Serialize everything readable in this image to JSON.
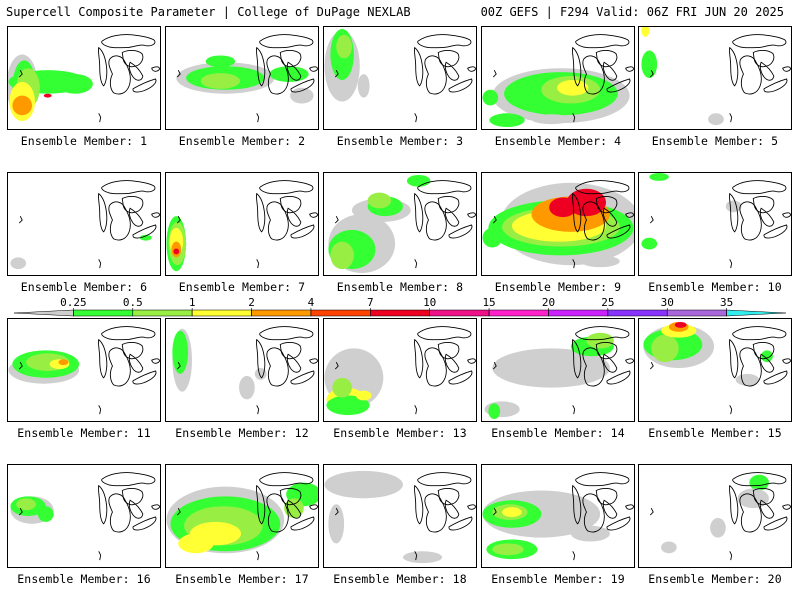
{
  "header": {
    "left_title": "Supercell Composite Parameter | College of DuPage NEXLAB",
    "right_title": "00Z GEFS | F294 Valid: 06Z FRI JUN 20 2025"
  },
  "colorbar": {
    "levels": [
      "0.25",
      "0.5",
      "1",
      "2",
      "4",
      "7",
      "10",
      "15",
      "20",
      "25",
      "30",
      "35"
    ],
    "colors": [
      "#cfcfcf",
      "#33ff33",
      "#99ee44",
      "#ffff33",
      "#ff9900",
      "#ff4400",
      "#ee0022",
      "#ee1188",
      "#ff22cc",
      "#cc22ff",
      "#8833ff",
      "#aa66dd",
      "#33eeee"
    ]
  },
  "colors": {
    "gray": "#cfcfcf",
    "green": "#33ff33",
    "lime": "#99ee44",
    "yellow": "#ffff33",
    "orange": "#ff9900",
    "red": "#ee0022"
  },
  "members": [
    {
      "label": "Ensemble Member: 1"
    },
    {
      "label": "Ensemble Member: 2"
    },
    {
      "label": "Ensemble Member: 3"
    },
    {
      "label": "Ensemble Member: 4"
    },
    {
      "label": "Ensemble Member: 5"
    },
    {
      "label": "Ensemble Member: 6"
    },
    {
      "label": "Ensemble Member: 7"
    },
    {
      "label": "Ensemble Member: 8"
    },
    {
      "label": "Ensemble Member: 9"
    },
    {
      "label": "Ensemble Member: 10"
    },
    {
      "label": "Ensemble Member: 11"
    },
    {
      "label": "Ensemble Member: 12"
    },
    {
      "label": "Ensemble Member: 13"
    },
    {
      "label": "Ensemble Member: 14"
    },
    {
      "label": "Ensemble Member: 15"
    },
    {
      "label": "Ensemble Member: 16"
    },
    {
      "label": "Ensemble Member: 17"
    },
    {
      "label": "Ensemble Member: 18"
    },
    {
      "label": "Ensemble Member: 19"
    },
    {
      "label": "Ensemble Member: 20"
    }
  ]
}
